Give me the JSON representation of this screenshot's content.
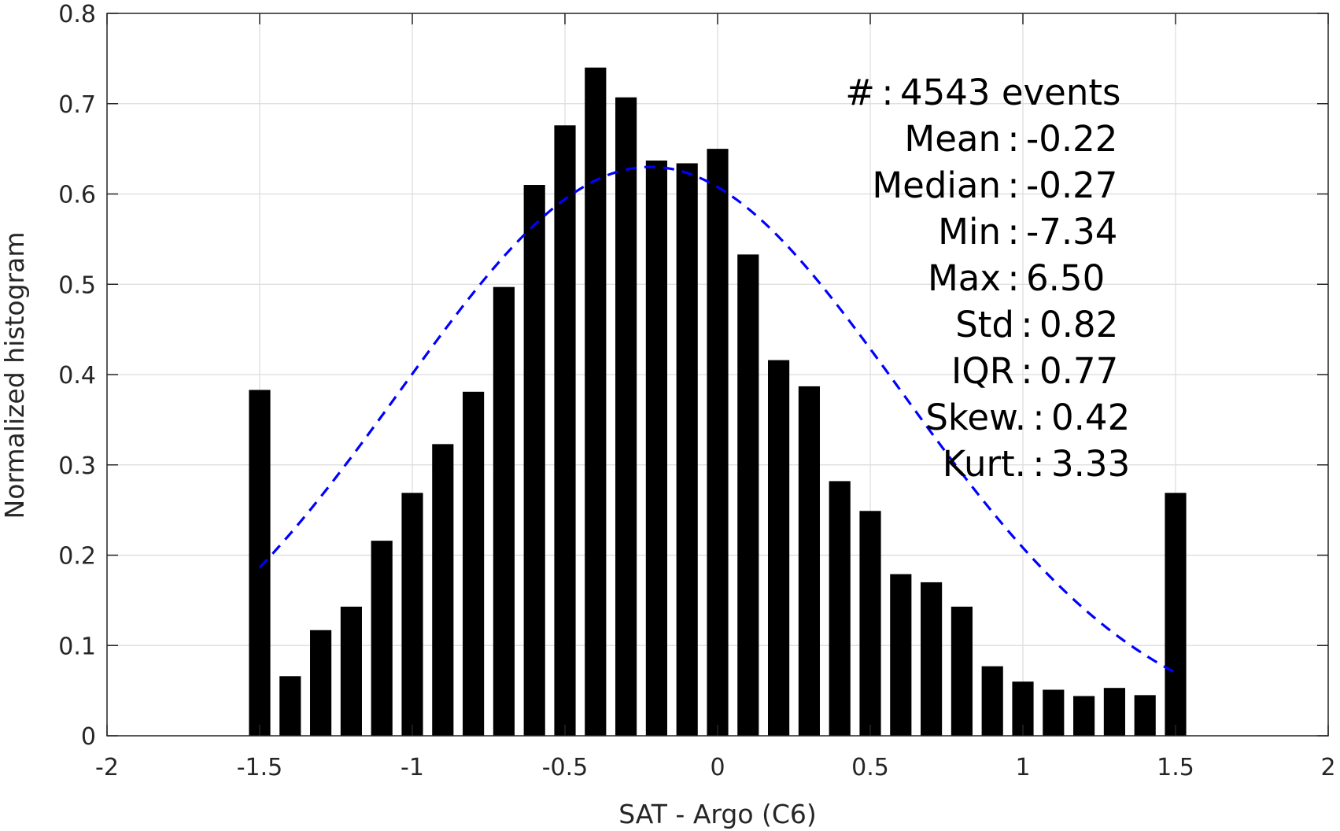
{
  "chart_data": {
    "type": "bar",
    "title": "",
    "xlabel": "SAT - Argo (C6)",
    "ylabel": "Normalized histogram",
    "xlim": [
      -2,
      2
    ],
    "ylim": [
      0,
      0.8
    ],
    "xticks": [
      -2,
      -1.5,
      -1,
      -0.5,
      0,
      0.5,
      1,
      1.5,
      2
    ],
    "yticks": [
      0,
      0.1,
      0.2,
      0.3,
      0.4,
      0.5,
      0.6,
      0.7,
      0.8
    ],
    "xtick_labels": [
      "-2",
      "-1.5",
      "-1",
      "-0.5",
      "0",
      "0.5",
      "1",
      "1.5",
      "2"
    ],
    "ytick_labels": [
      "0",
      "0.1",
      "0.2",
      "0.3",
      "0.4",
      "0.5",
      "0.6",
      "0.7",
      "0.8"
    ],
    "grid": true,
    "bar_width": 0.07,
    "bar_color": "#000000",
    "x": [
      -1.5,
      -1.4,
      -1.3,
      -1.2,
      -1.1,
      -1.0,
      -0.9,
      -0.8,
      -0.7,
      -0.6,
      -0.5,
      -0.4,
      -0.3,
      -0.2,
      -0.1,
      0.0,
      0.1,
      0.2,
      0.3,
      0.4,
      0.5,
      0.6,
      0.7,
      0.8,
      0.9,
      1.0,
      1.1,
      1.2,
      1.3,
      1.4,
      1.5
    ],
    "values": [
      0.383,
      0.066,
      0.117,
      0.143,
      0.216,
      0.269,
      0.323,
      0.381,
      0.497,
      0.61,
      0.676,
      0.74,
      0.707,
      0.637,
      0.634,
      0.65,
      0.533,
      0.416,
      0.387,
      0.282,
      0.249,
      0.179,
      0.17,
      0.143,
      0.077,
      0.06,
      0.051,
      0.044,
      0.053,
      0.045,
      0.269
    ],
    "fit_curve": {
      "type": "normal",
      "mean": -0.22,
      "std": 0.82,
      "peak": 0.63,
      "x_range": [
        -1.5,
        1.5
      ],
      "color": "#0000ff",
      "style": "dashed"
    },
    "stats_box": [
      {
        "label": "#",
        "value": "4543 events"
      },
      {
        "label": "Mean",
        "value": "-0.22"
      },
      {
        "label": "Median",
        "value": "-0.27"
      },
      {
        "label": "Min",
        "value": "-7.34"
      },
      {
        "label": "Max",
        "value": "6.50"
      },
      {
        "label": "Std",
        "value": "0.82"
      },
      {
        "label": "IQR",
        "value": "0.77"
      },
      {
        "label": "Skew.",
        "value": "0.42"
      },
      {
        "label": "Kurt.",
        "value": "3.33"
      }
    ],
    "stats_separator": ":"
  }
}
